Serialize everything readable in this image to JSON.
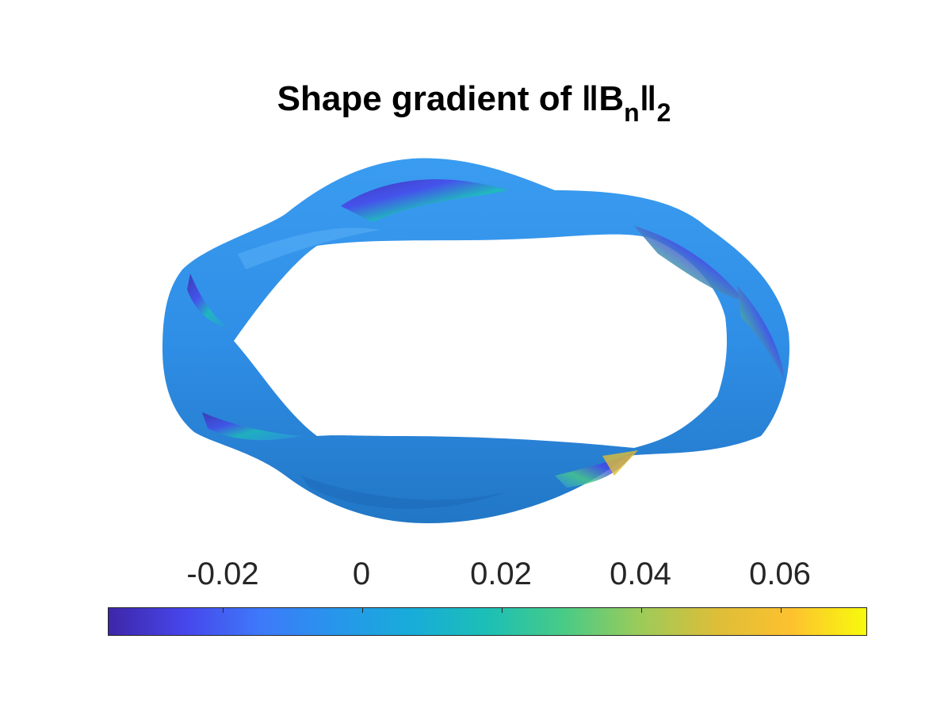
{
  "title": {
    "main": "Shape gradient of ",
    "norm_open": "‖B",
    "subscript": "n",
    "norm_close": "‖",
    "subscript2": "2"
  },
  "colorbar": {
    "tick_labels": [
      "-0.02",
      "0",
      "0.02",
      "0.04",
      "0.06"
    ],
    "tick_values": [
      -0.02,
      0,
      0.02,
      0.04,
      0.06
    ],
    "range": [
      -0.0369,
      0.0719
    ],
    "colormap": [
      "#3e26a8",
      "#4746eb",
      "#3e79fa",
      "#2796eb",
      "#18acd9",
      "#1cbfb6",
      "#48cb86",
      "#9bcb5a",
      "#dcbe39",
      "#fdc12f",
      "#f8fa0d"
    ]
  },
  "surface": {
    "base_color": "#2f8ee6"
  }
}
